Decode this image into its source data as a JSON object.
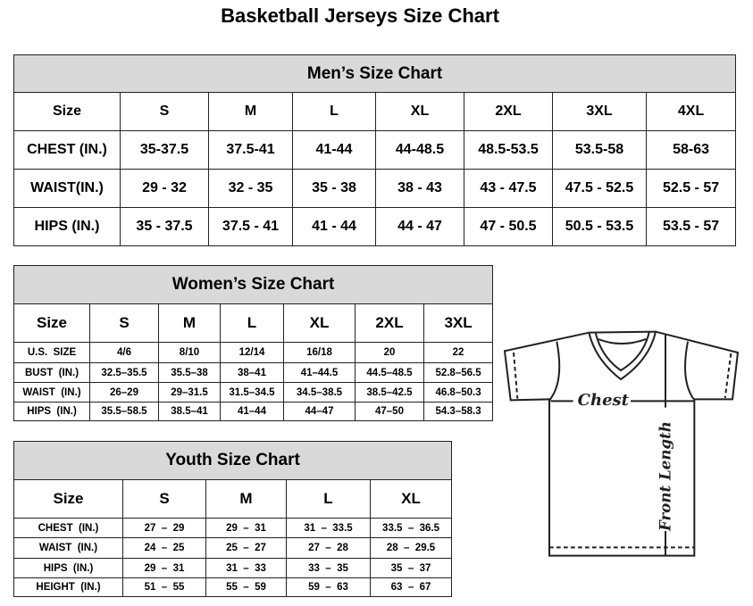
{
  "title": "Basketball Jerseys Size Chart",
  "men": {
    "header": "Men’s Size Chart",
    "rows": [
      [
        "Size",
        "S",
        "M",
        "L",
        "XL",
        "2XL",
        "3XL",
        "4XL"
      ],
      [
        "CHEST (IN.)",
        "35-37.5",
        "37.5-41",
        "41-44",
        "44-48.5",
        "48.5-53.5",
        "53.5-58",
        "58-63"
      ],
      [
        "WAIST(IN.)",
        "29 - 32",
        "32 - 35",
        "35 - 38",
        "38 - 43",
        "43 - 47.5",
        "47.5 - 52.5",
        "52.5 - 57"
      ],
      [
        "HIPS (IN.)",
        "35 - 37.5",
        "37.5 - 41",
        "41 - 44",
        "44 - 47",
        "47 - 50.5",
        "50.5 - 53.5",
        "53.5 - 57"
      ]
    ]
  },
  "women": {
    "header": "Women’s Size Chart",
    "rows": [
      [
        "Size",
        "S",
        "M",
        "L",
        "XL",
        "2XL",
        "3XL"
      ],
      [
        "U.S.  SIZE",
        "4/6",
        "8/10",
        "12/14",
        "16/18",
        "20",
        "22"
      ],
      [
        "BUST  (IN.)",
        "32.5–35.5",
        "35.5–38",
        "38–41",
        "41–44.5",
        "44.5–48.5",
        "52.8–56.5"
      ],
      [
        "WAIST  (IN.)",
        "26–29",
        "29–31.5",
        "31.5–34.5",
        "34.5–38.5",
        "38.5–42.5",
        "46.8–50.3"
      ],
      [
        "HIPS  (IN.)",
        "35.5–58.5",
        "38.5–41",
        "41–44",
        "44–47",
        "47–50",
        "54.3–58.3"
      ]
    ]
  },
  "youth": {
    "header": "Youth Size Chart",
    "rows": [
      [
        "Size",
        "S",
        "M",
        "L",
        "XL"
      ],
      [
        "CHEST  (IN.)",
        "27  –  29",
        "29  –  31",
        "31  –  33.5",
        "33.5  –  36.5"
      ],
      [
        "WAIST  (IN.)",
        "24  –  25",
        "25  –  27",
        "27  –  28",
        "28  –  29.5"
      ],
      [
        "HIPS  (IN.)",
        "29  –  31",
        "31  –  33",
        "33  –  35",
        "35  –  37"
      ],
      [
        "HEIGHT  (IN.)",
        "51  –  55",
        "55  –  59",
        "59  –  63",
        "63  –  67"
      ]
    ]
  },
  "diagram": {
    "chest_label": "Chest",
    "length_label": "Front Length"
  }
}
